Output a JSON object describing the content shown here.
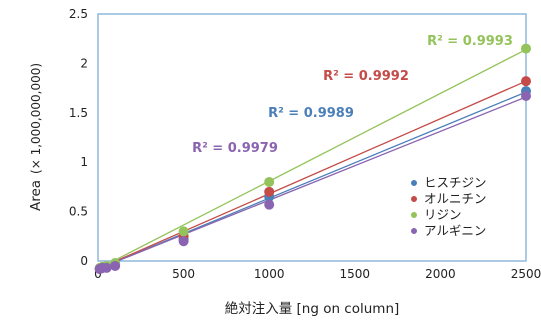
{
  "chart_data": {
    "type": "scatter",
    "xlabel": "絶対注入量 [ng on column]",
    "ylabel": "Area",
    "ylabel_suffix": "(× 1,000,000,000)",
    "xlim": [
      0,
      2500
    ],
    "ylim": [
      0,
      2.5
    ],
    "xticks": [
      "0",
      "500",
      "1000",
      "1500",
      "2000",
      "2500"
    ],
    "yticks": [
      "0",
      "0.5",
      "1",
      "1.5",
      "2",
      "2.5"
    ],
    "grid": false,
    "legend_position": "bottom-right",
    "colors": {
      "frame": "#8fb8de",
      "histidine": "#4a7fb9",
      "ornithine": "#c44b47",
      "lysine": "#93c35a",
      "arginine": "#8a64b0"
    },
    "series": [
      {
        "name": "ヒスチジン",
        "color_key": "histidine",
        "r2": "R² = 0.9989",
        "x": [
          10,
          25,
          50,
          100,
          500,
          1000,
          2500
        ],
        "y": [
          -0.08,
          -0.07,
          -0.06,
          -0.04,
          0.22,
          0.65,
          1.72
        ],
        "fit": [
          [
            0,
            -0.08
          ],
          [
            2500,
            1.71
          ]
        ]
      },
      {
        "name": "オルニチン",
        "color_key": "ornithine",
        "r2": "R² = 0.9992",
        "x": [
          10,
          25,
          50,
          100,
          500,
          1000,
          2500
        ],
        "y": [
          -0.08,
          -0.07,
          -0.06,
          -0.03,
          0.25,
          0.7,
          1.82
        ],
        "fit": [
          [
            0,
            -0.08
          ],
          [
            2500,
            1.82
          ]
        ]
      },
      {
        "name": "リジン",
        "color_key": "lysine",
        "r2": "R² = 0.9993",
        "x": [
          10,
          25,
          50,
          100,
          500,
          1000,
          2500
        ],
        "y": [
          -0.07,
          -0.06,
          -0.05,
          -0.02,
          0.3,
          0.8,
          2.15
        ],
        "fit": [
          [
            0,
            -0.08
          ],
          [
            2500,
            2.14
          ]
        ]
      },
      {
        "name": "アルギニン",
        "color_key": "arginine",
        "r2": "R² = 0.9979",
        "x": [
          10,
          25,
          50,
          100,
          500,
          1000,
          2500
        ],
        "y": [
          -0.08,
          -0.07,
          -0.07,
          -0.05,
          0.2,
          0.57,
          1.67
        ],
        "fit": [
          [
            0,
            -0.08
          ],
          [
            2500,
            1.66
          ]
        ]
      }
    ]
  }
}
